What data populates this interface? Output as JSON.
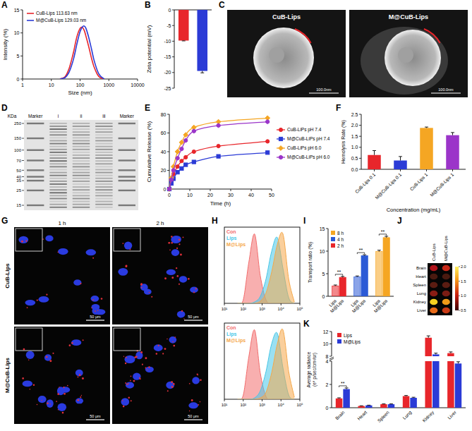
{
  "chart_data": [
    {
      "panel": "A",
      "type": "line",
      "x_label": "Size (nm)",
      "y_label": "Intensity (%)",
      "log": "x",
      "legend": "upper left",
      "x": [
        20,
        30,
        40,
        50,
        60,
        70,
        80,
        100,
        120,
        140,
        160,
        200,
        250,
        300,
        400,
        500,
        700
      ],
      "series": [
        {
          "name": "CuB-Lips 113.63 nm",
          "color": "#e8262b",
          "values": [
            0,
            0.5,
            2,
            4,
            6,
            8,
            9.5,
            11,
            11.2,
            10.5,
            9.3,
            7,
            4.5,
            2.8,
            1,
            0.3,
            0
          ]
        },
        {
          "name": "M@CuB-Lips 129.03 nm",
          "color": "#2b3bd6",
          "values": [
            0,
            0.3,
            1.3,
            2.8,
            4.5,
            6.3,
            8,
            10.3,
            11.3,
            11.5,
            11,
            9,
            6.5,
            4.3,
            1.8,
            0.7,
            0
          ]
        }
      ],
      "xlim": [
        1,
        10000
      ],
      "xticks": [
        1,
        10,
        100,
        1000,
        10000
      ],
      "ylim": [
        0,
        15
      ],
      "yticks": [
        0,
        5,
        10,
        15
      ]
    },
    {
      "panel": "B",
      "type": "bar",
      "y_label": "Zeta potential (mV)",
      "categories": [
        null,
        null
      ],
      "values": [
        -9.8,
        -19.5
      ],
      "errors": [
        0.1,
        0.6
      ],
      "colors": [
        "#e8262b",
        "#2b3bd6"
      ],
      "ylim": [
        -25,
        0
      ],
      "yticks": [
        0,
        -5,
        -10,
        -15,
        -20,
        -25
      ]
    },
    {
      "panel": "E",
      "type": "line",
      "x_label": "Time (h)",
      "y_label": "Cumulative Release (%)",
      "legend": "right",
      "x": [
        0,
        1,
        2,
        4,
        6,
        8,
        12,
        24,
        48
      ],
      "series": [
        {
          "name": "CuB-LiPs pH 7.4",
          "color": "#e8262b",
          "marker": "circle",
          "values": [
            0,
            9,
            16,
            24,
            30,
            34,
            40,
            46,
            51
          ]
        },
        {
          "name": "M@CuB-LiPs pH 7.4",
          "color": "#2b3bd6",
          "marker": "square",
          "values": [
            0,
            6,
            11,
            18,
            22,
            26,
            29,
            35,
            39
          ]
        },
        {
          "name": "CuB-LiPs pH 6.0",
          "color": "#f5a623",
          "marker": "diamond",
          "values": [
            0,
            12,
            24,
            40,
            50,
            58,
            66,
            72,
            76
          ]
        },
        {
          "name": "M@CuB-LiPs pH 6.0",
          "color": "#9b35c9",
          "marker": "hexagon",
          "values": [
            0,
            10,
            20,
            33,
            43,
            52,
            62,
            68,
            72
          ]
        }
      ],
      "xlim": [
        0,
        50
      ],
      "xticks": [
        0,
        10,
        20,
        30,
        40,
        50
      ],
      "ylim": [
        0,
        80
      ],
      "yticks": [
        0,
        20,
        40,
        60,
        80
      ]
    },
    {
      "panel": "F",
      "type": "bar",
      "x_label": "Concentration (mg/mL)",
      "y_label": "Hemolysis Rate (%)",
      "categories": [
        "CuB-Lips 0.1",
        "M@CuB-Lips 0.1",
        "CuB-Lips 1",
        "M@CuB-Lips 1"
      ],
      "values": [
        0.65,
        0.4,
        1.88,
        1.55
      ],
      "errors": [
        0.2,
        0.18,
        0.04,
        0.12
      ],
      "colors": [
        "#e8262b",
        "#2b3bd6",
        "#f5a623",
        "#9b35c9"
      ],
      "ylim": [
        0,
        2.5
      ],
      "yticks": [
        {
          "value": 0,
          "label": "0.0"
        },
        0.5,
        {
          "value": 1,
          "label": "1.0"
        },
        1.5,
        {
          "value": 2,
          "label": "2.0"
        },
        2.5
      ]
    },
    {
      "panel": "H",
      "type": "area",
      "log": "x",
      "legend": "upper left",
      "tick_labels": "x",
      "x": [
        50,
        100,
        200,
        400,
        800,
        1600,
        3200,
        6400,
        12800,
        25600,
        51200
      ],
      "series": [
        {
          "name": "Con",
          "color": "#f26d6d",
          "values": [
            0,
            5,
            60,
            100,
            40,
            5,
            0,
            0,
            0,
            0,
            0
          ]
        },
        {
          "name": "Lips",
          "color": "#47c7e8",
          "values": [
            0,
            0,
            0,
            2,
            10,
            35,
            75,
            95,
            50,
            8,
            0
          ]
        },
        {
          "name": "M@Lips",
          "color": "#f5a84a",
          "values": [
            0,
            0,
            0,
            0,
            3,
            15,
            45,
            85,
            100,
            35,
            2
          ]
        }
      ],
      "xlim": [
        10,
        100000
      ],
      "xticks": [
        {
          "value": 10,
          "label": "10¹"
        },
        {
          "value": 100,
          "label": "10²"
        },
        {
          "value": 1000,
          "label": "10³"
        },
        {
          "value": 10000,
          "label": "10⁴"
        },
        {
          "value": 100000,
          "label": "10⁵"
        }
      ],
      "ylim": [
        0,
        110
      ]
    },
    {
      "type": "area",
      "log": "x",
      "legend": "upper left",
      "tick_labels": "x",
      "x": [
        50,
        100,
        200,
        400,
        800,
        1600,
        3200,
        6400,
        12800,
        25600,
        51200
      ],
      "series": [
        {
          "name": "Con",
          "color": "#f26d6d",
          "values": [
            0,
            6,
            62,
            100,
            38,
            4,
            0,
            0,
            0,
            0,
            0
          ]
        },
        {
          "name": "Lips",
          "color": "#47c7e8",
          "values": [
            0,
            0,
            0,
            2,
            12,
            40,
            80,
            95,
            45,
            6,
            0
          ]
        },
        {
          "name": "M@Lips",
          "color": "#f5a84a",
          "values": [
            0,
            0,
            0,
            0,
            2,
            10,
            38,
            80,
            100,
            40,
            3
          ]
        }
      ],
      "xlim": [
        10,
        100000
      ],
      "xticks": [
        {
          "value": 10,
          "label": "10¹"
        },
        {
          "value": 100,
          "label": "10²"
        },
        {
          "value": 1000,
          "label": "10³"
        },
        {
          "value": 10000,
          "label": "10⁴"
        },
        {
          "value": 100000,
          "label": "10⁵"
        }
      ],
      "ylim": [
        0,
        110
      ]
    },
    {
      "panel": "I",
      "type": "bar",
      "y_label": "Transport ratio (%)",
      "legend": "upper left",
      "categories": [
        "Lips",
        "M@Lips"
      ],
      "series": [
        {
          "name": "2 h",
          "color": "#e8262b",
          "values": [
            2.3,
            4.2
          ],
          "errors": [
            0.2,
            0.2
          ],
          "significance": "**"
        },
        {
          "name": "4 h",
          "color": "#2b5ad6",
          "values": [
            4.3,
            9.0
          ],
          "errors": [
            0.2,
            0.2
          ],
          "significance": "**"
        },
        {
          "name": "8 h",
          "color": "#f5a623",
          "values": [
            9.9,
            13.0
          ],
          "errors": [
            0.3,
            0.3
          ],
          "significance": "**"
        }
      ],
      "ylim": [
        0,
        15
      ],
      "yticks": [
        0,
        5,
        10,
        15
      ]
    },
    {
      "panel": "K",
      "type": "bar",
      "y_label": "Average radiance (e⁸ p/sec/cm²/sr)",
      "legend": "upper left",
      "categories": [
        "Brain",
        "Heart",
        "Spleen",
        "Lung",
        "Kidney",
        "Liver"
      ],
      "series": [
        {
          "name": "Lips",
          "color": "#e8262b",
          "values": [
            0.8,
            0.15,
            0.3,
            1.0,
            11,
            8.5
          ],
          "errors": [
            0.05,
            0.02,
            0.03,
            0.05,
            0.3,
            0.2
          ]
        },
        {
          "name": "M@Lips",
          "color": "#2b3bd6",
          "values": [
            1.6,
            0.2,
            0.3,
            0.85,
            8.3,
            3.8
          ],
          "errors": [
            0.1,
            0.02,
            0.03,
            0.05,
            0.2,
            0.15
          ]
        }
      ],
      "significance": [
        "**",
        null,
        null,
        null,
        null,
        null
      ],
      "ylim": [
        0,
        12
      ],
      "ybreak": [
        4,
        8
      ],
      "yticks": [
        0,
        2,
        4,
        8,
        10,
        12
      ]
    }
  ],
  "images": [
    {
      "panel": "C",
      "titles": [
        "CuB-Lips",
        "M@CuB-Lips"
      ],
      "scale_bar": "100.0nm"
    },
    {
      "panel": "D",
      "unit": "KDa",
      "lanes": [
        "Marker",
        "i",
        "ii",
        "iii",
        "Marker"
      ],
      "marker_kda": [
        250,
        150,
        100,
        70,
        50,
        40,
        35,
        25,
        15
      ]
    },
    {
      "panel": "G",
      "columns": [
        "1 h",
        "2 h"
      ],
      "rows": [
        "CuB-Lips",
        "M@CuB-Lips"
      ],
      "scale_bar": "50 μm"
    },
    {
      "panel": "J",
      "columns": [
        "CuB-Lips",
        "M@CuB-Lips"
      ],
      "organs": [
        "Brain",
        "Heart",
        "Spleen",
        "Lung",
        "Kidney",
        "Liver"
      ],
      "colorbar": {
        "range": [
          0.5,
          2.0
        ],
        "ticks": [
          {
            "value": 0.5,
            "label": "0.5"
          },
          {
            "value": 1,
            "label": "1.0"
          },
          {
            "value": 1.5,
            "label": "1.5"
          },
          {
            "value": 2,
            "label": "2.0"
          }
        ]
      }
    }
  ]
}
